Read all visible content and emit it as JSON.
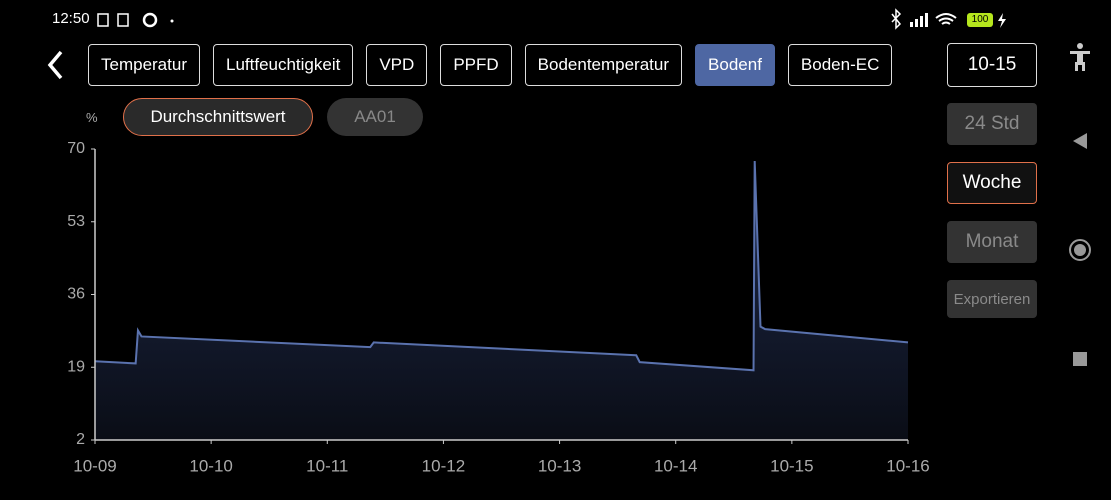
{
  "status_bar": {
    "time": "12:50",
    "battery": "100"
  },
  "tabs": [
    "Temperatur",
    "Luftfeuchtigkeit",
    "VPD",
    "PPFD",
    "Bodentemperatur",
    "Bodenf",
    "Boden-EC"
  ],
  "active_tab": 5,
  "date_button": "10-15",
  "series_chips": [
    "Durchschnittswert",
    "AA01"
  ],
  "active_chip": 0,
  "range_buttons": [
    "24 Std",
    "Woche",
    "Monat"
  ],
  "active_range": 1,
  "export_button": "Exportieren",
  "chart_data": {
    "type": "area",
    "y_label": "%",
    "x": [
      0,
      0.35,
      0.37,
      0.4,
      2.37,
      2.4,
      4.66,
      4.69,
      5.67,
      5.68,
      5.73,
      5.77,
      7.0
    ],
    "series": [
      {
        "name": "Durchschnittswert",
        "color": "#5a72ae",
        "values": [
          20.4,
          19.9,
          27.6,
          26.2,
          23.7,
          24.8,
          21.8,
          20.2,
          18.3,
          67.2,
          28.5,
          27.9,
          24.8
        ]
      }
    ],
    "xlim": [
      0,
      7
    ],
    "xticks": [
      {
        "value": 0,
        "label": "10-09"
      },
      {
        "value": 1,
        "label": "10-10"
      },
      {
        "value": 2,
        "label": "10-11"
      },
      {
        "value": 3,
        "label": "10-12"
      },
      {
        "value": 4,
        "label": "10-13"
      },
      {
        "value": 5,
        "label": "10-14"
      },
      {
        "value": 6,
        "label": "10-15"
      },
      {
        "value": 7,
        "label": "10-16"
      }
    ],
    "ylim": [
      2,
      70
    ],
    "yticks": [
      2,
      19,
      36,
      53,
      70
    ]
  }
}
